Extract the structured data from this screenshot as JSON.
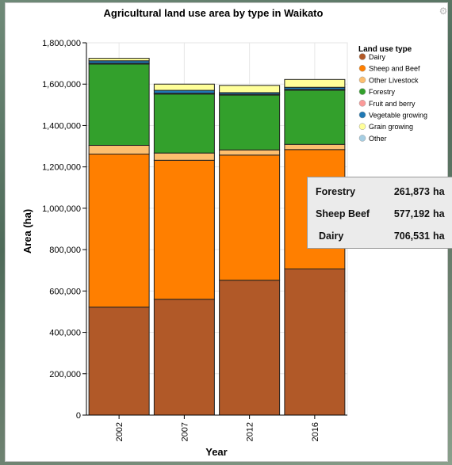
{
  "chart_data": {
    "type": "bar",
    "stacked": true,
    "title": "Agricultural land use area by type in Waikato",
    "xlabel": "Year",
    "ylabel": "Area (ha)",
    "ylim": [
      0,
      1800000
    ],
    "yticks": [
      0,
      200000,
      400000,
      600000,
      800000,
      1000000,
      1200000,
      1400000,
      1600000,
      1800000
    ],
    "ytick_labels": [
      "0",
      "200,000",
      "400,000",
      "600,000",
      "800,000",
      "1,000,000",
      "1,200,000",
      "1,400,000",
      "1,600,000",
      "1,800,000"
    ],
    "categories": [
      "2002",
      "2007",
      "2012",
      "2016"
    ],
    "grid": true,
    "legend": {
      "title": "Land use type",
      "position": "top-right"
    },
    "series": [
      {
        "name": "Dairy",
        "color": "#b15928",
        "values": [
          522000,
          560000,
          652000,
          706531
        ]
      },
      {
        "name": "Sheep and Beef",
        "color": "#ff7f00",
        "values": [
          740000,
          672000,
          605000,
          577192
        ]
      },
      {
        "name": "Other Livestock",
        "color": "#fdbf6f",
        "values": [
          42000,
          35000,
          25000,
          25000
        ]
      },
      {
        "name": "Forestry",
        "color": "#33a02c",
        "values": [
          393000,
          285000,
          265000,
          261873
        ]
      },
      {
        "name": "Fruit and berry",
        "color": "#fb9a99",
        "values": [
          4000,
          4000,
          4000,
          4000
        ]
      },
      {
        "name": "Vegetable growing",
        "color": "#1f78b4",
        "values": [
          12000,
          14000,
          8000,
          10000
        ]
      },
      {
        "name": "Grain growing",
        "color": "#ffff99",
        "values": [
          12000,
          30000,
          35000,
          38000
        ]
      },
      {
        "name": "Other",
        "color": "#a6cee3",
        "values": [
          0,
          0,
          0,
          0
        ]
      }
    ]
  },
  "tooltip": {
    "rows": [
      {
        "label": "Forestry",
        "value": "261,873",
        "unit": "ha"
      },
      {
        "label": "Sheep Beef",
        "value": "577,192",
        "unit": "ha"
      },
      {
        "label": "Dairy",
        "value": "706,531",
        "unit": "ha"
      }
    ]
  },
  "window": {
    "close_icon": "⚙"
  }
}
